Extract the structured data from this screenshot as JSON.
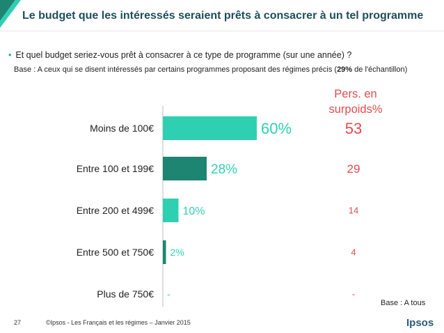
{
  "slide": {
    "title": "Le budget que les intéressés seraient prêts à consacrer à un tel programme",
    "question_bullet": "•",
    "question": "Et quel budget seriez-vous prêt à consacrer à ce type de programme (sur une année) ?",
    "base_prefix": "Base : A ceux qui se disent intéressés par certains programmes proposant des régimes précis (",
    "base_bold": "29%",
    "base_suffix": " de l'échantillon)",
    "pers_header_line1": "Pers. en",
    "pers_header_line2": "surpoids%",
    "footer_base": "Base : A tous",
    "page_number": "27",
    "copyright": "©Ipsos - Les Français et les régimes –  Janvier 2015",
    "logo_text": "Ipsos"
  },
  "colors": {
    "title": "#1e4e5a",
    "bar_light": "#2fd0b2",
    "bar_dark": "#1e8572",
    "value_label": "#2fd0b2",
    "pers_red": "#e04b4b",
    "axis": "#bdbdbd"
  },
  "chart_data": {
    "type": "bar",
    "orientation": "horizontal",
    "categories": [
      "Moins de 100€",
      "Entre 100 et 199€",
      "Entre 200 et 499€",
      "Entre 500 et 750€",
      "Plus de 750€"
    ],
    "values": [
      60,
      28,
      10,
      2,
      0
    ],
    "value_labels": [
      "60%",
      "28%",
      "10%",
      "2%",
      "-"
    ],
    "bar_colors": [
      "#2fd0b2",
      "#1e8572",
      "#2fd0b2",
      "#1e8572",
      "#2fd0b2"
    ],
    "comparison_series": {
      "name": "Pers. en surpoids%",
      "labels": [
        "53",
        "29",
        "14",
        "4",
        "-"
      ]
    },
    "xlim": [
      0,
      100
    ],
    "grid": false,
    "legend": "none"
  }
}
